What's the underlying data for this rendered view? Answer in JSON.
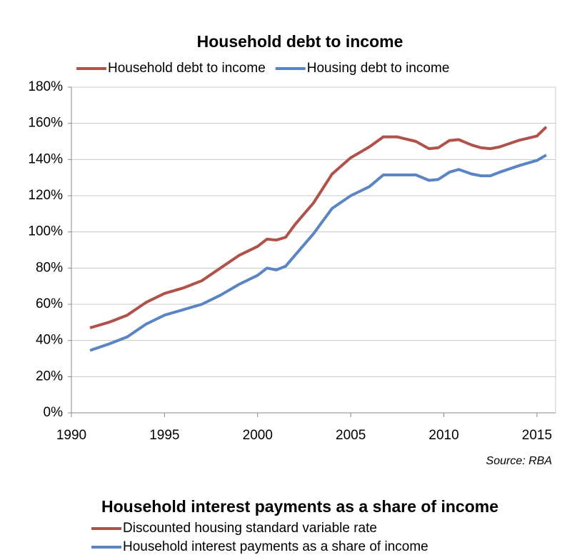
{
  "chart_data": [
    {
      "type": "line",
      "title": "Household debt to income",
      "x": [
        1991,
        1992,
        1993,
        1994,
        1995,
        1996,
        1997,
        1998,
        1999,
        2000,
        2000.5,
        2001,
        2001.5,
        2002,
        2003,
        2004,
        2005,
        2006,
        2006.75,
        2007.5,
        2008.5,
        2009.2,
        2009.7,
        2010.3,
        2010.8,
        2011.5,
        2012,
        2012.5,
        2013,
        2014,
        2015,
        2015.5
      ],
      "series": [
        {
          "name": "Household debt to income",
          "color": "#b0524a",
          "values": [
            47,
            50,
            54,
            61,
            66,
            69,
            73,
            80,
            87,
            92,
            96,
            95.5,
            97,
            104,
            116,
            132,
            141,
            147,
            152.5,
            152.5,
            150,
            146,
            146.5,
            150.5,
            151,
            148,
            146.5,
            146,
            147,
            150.5,
            153,
            158
          ]
        },
        {
          "name": "Housing debt to income",
          "color": "#5a84c4",
          "values": [
            34.5,
            38,
            42,
            49,
            54,
            57,
            60,
            65,
            71,
            76,
            80,
            79,
            81,
            87,
            99,
            113,
            120,
            125,
            131.5,
            131.5,
            131.5,
            128.5,
            129,
            133,
            134.5,
            132,
            131,
            131,
            133,
            136.5,
            139.5,
            142.5
          ]
        }
      ],
      "xlim": [
        1990,
        2016
      ],
      "xticks": [
        1990,
        1995,
        2000,
        2005,
        2010,
        2015
      ],
      "ylim": [
        0,
        180
      ],
      "yticks": [
        {
          "value": 0,
          "label": "0%"
        },
        {
          "value": 20,
          "label": "20%"
        },
        {
          "value": 40,
          "label": "40%"
        },
        {
          "value": 60,
          "label": "60%"
        },
        {
          "value": 80,
          "label": "80%"
        },
        {
          "value": 100,
          "label": "100%"
        },
        {
          "value": 120,
          "label": "120%"
        },
        {
          "value": 140,
          "label": "140%"
        },
        {
          "value": 160,
          "label": "160%"
        },
        {
          "value": 180,
          "label": "180%"
        }
      ],
      "grid": true,
      "source": "Source: RBA"
    },
    {
      "type": "line",
      "title": "Household interest payments as a share of income",
      "series": [
        {
          "name": "Discounted housing standard variable rate",
          "color": "#b0524a"
        },
        {
          "name": "Household interest payments as a share of income",
          "color": "#5a84c4"
        }
      ]
    }
  ]
}
